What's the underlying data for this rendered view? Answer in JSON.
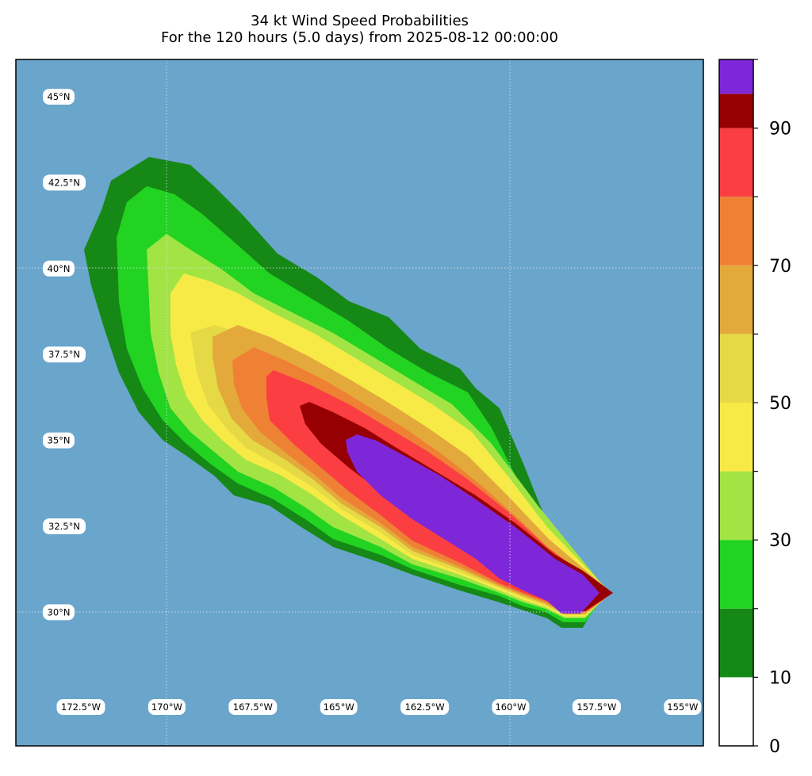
{
  "title": {
    "line1": "34 kt Wind Speed Probabilities",
    "line2": "For the 120 hours (5.0 days) from 2025-08-12 00:00:00"
  },
  "map": {
    "ocean_color": "#6aa5cb",
    "lat_labels": [
      "45°N",
      "42.5°N",
      "40°N",
      "37.5°N",
      "35°N",
      "32.5°N",
      "30°N"
    ],
    "lon_labels": [
      "172.5°W",
      "170°W",
      "167.5°W",
      "165°W",
      "162.5°W",
      "160°W",
      "157.5°W",
      "155°W"
    ]
  },
  "colorbar": {
    "min": 0,
    "max": 100,
    "bins": [
      {
        "from": 0,
        "to": 10,
        "color": "#ffffff"
      },
      {
        "from": 10,
        "to": 20,
        "color": "#168816"
      },
      {
        "from": 20,
        "to": 30,
        "color": "#22d322"
      },
      {
        "from": 30,
        "to": 40,
        "color": "#a2e444"
      },
      {
        "from": 40,
        "to": 50,
        "color": "#f8ea46"
      },
      {
        "from": 50,
        "to": 60,
        "color": "#e5d945"
      },
      {
        "from": 60,
        "to": 70,
        "color": "#e4a93b"
      },
      {
        "from": 70,
        "to": 80,
        "color": "#ee8133"
      },
      {
        "from": 80,
        "to": 90,
        "color": "#fa3e42"
      },
      {
        "from": 90,
        "to": 95,
        "color": "#960003"
      },
      {
        "from": 95,
        "to": 100,
        "color": "#7e27d9"
      }
    ],
    "tick_labels": [
      "0",
      "10",
      "30",
      "50",
      "70",
      "90"
    ]
  }
}
